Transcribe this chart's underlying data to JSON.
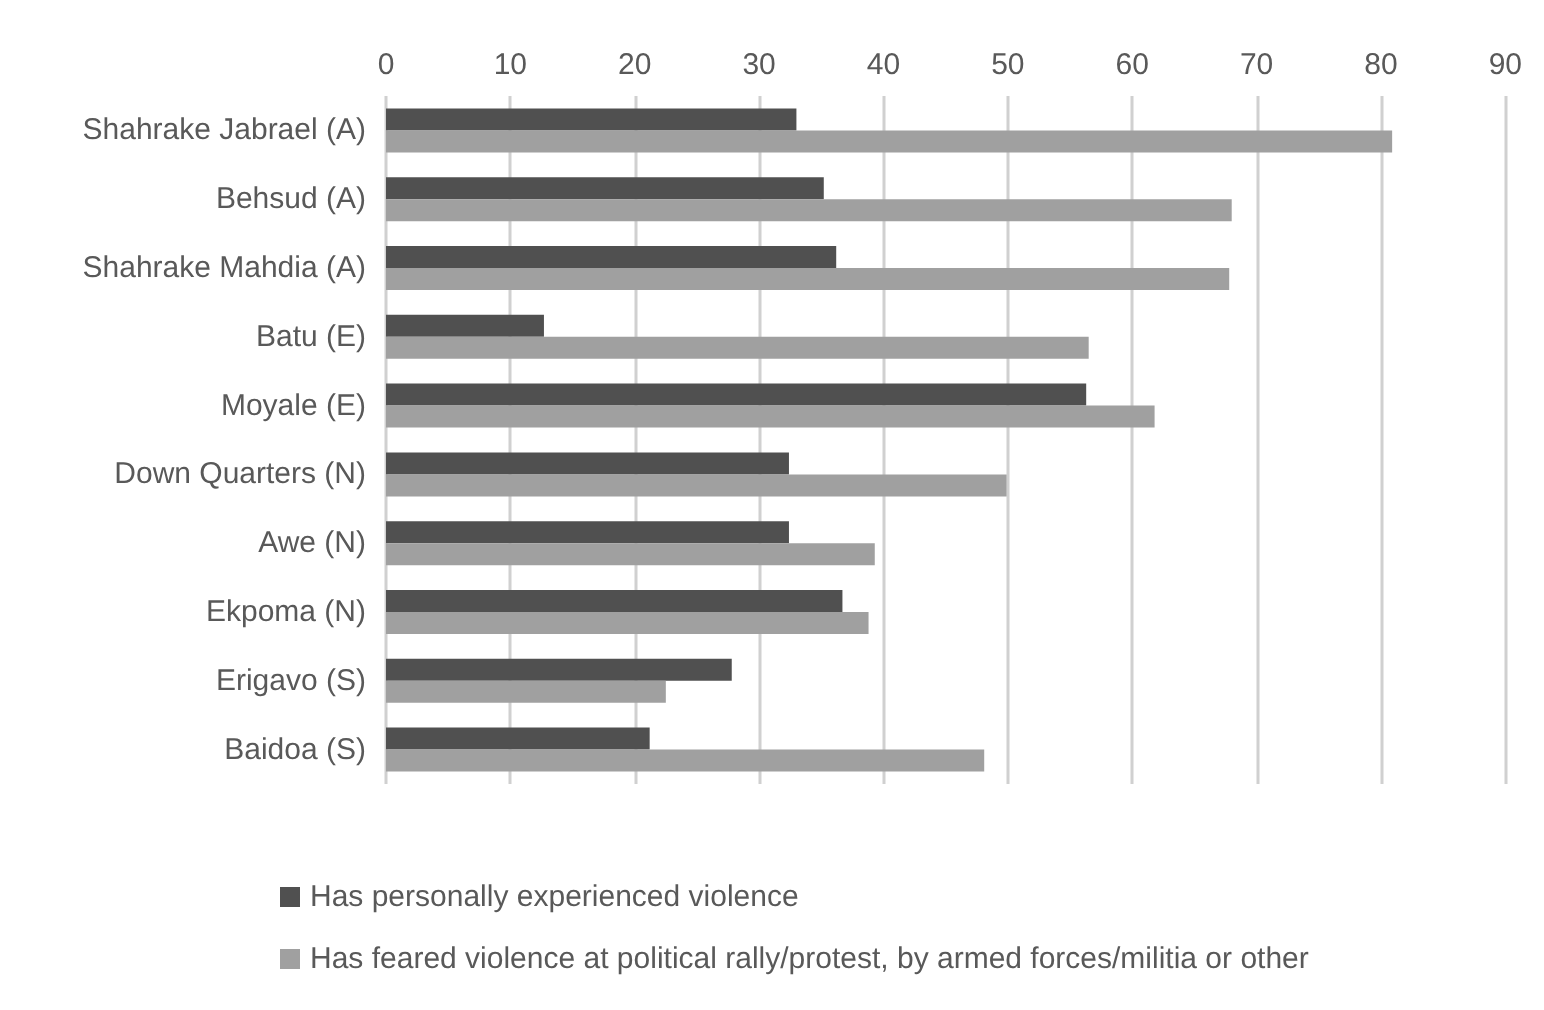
{
  "chart_data": {
    "type": "bar",
    "orientation": "horizontal",
    "categories": [
      "Shahrake Jabrael (A)",
      "Behsud (A)",
      "Shahrake Mahdia (A)",
      "Batu (E)",
      "Moyale (E)",
      "Down Quarters (N)",
      "Awe (N)",
      "Ekpoma (N)",
      "Erigavo (S)",
      "Baidoa (S)"
    ],
    "series": [
      {
        "name": "Has personally experienced violence",
        "color": "#505050",
        "values": [
          33.0,
          35.2,
          36.2,
          12.7,
          56.3,
          32.4,
          32.4,
          36.7,
          27.8,
          21.2
        ]
      },
      {
        "name": "Has feared violence at political rally/protest, by armed forces/militia or other",
        "color": "#a0a0a0",
        "values": [
          80.9,
          68.0,
          67.8,
          56.5,
          61.8,
          49.9,
          39.3,
          38.8,
          22.5,
          48.1
        ]
      }
    ],
    "xlim": [
      0,
      90
    ],
    "xticks": [
      0,
      10,
      20,
      30,
      40,
      50,
      60,
      70,
      80,
      90
    ],
    "grid": "x",
    "legend": "bottom"
  }
}
